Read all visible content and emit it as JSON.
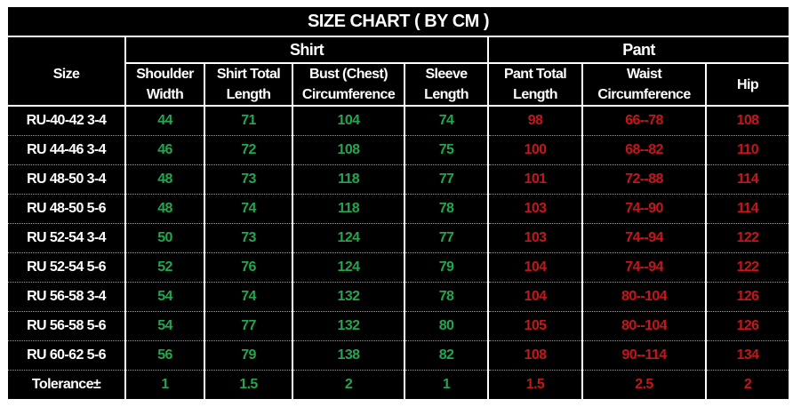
{
  "title": "SIZE CHART ( BY CM )",
  "groups": {
    "size": "Size",
    "shirt": "Shirt",
    "pant": "Pant"
  },
  "columns": [
    "Shoulder Width",
    "Shirt Total Length",
    "Bust (Chest) Circumference",
    "Sleeve Length",
    "Pant Total Length",
    "Waist Circumference",
    "Hip"
  ],
  "colors": {
    "shirt_values": "#22a64e",
    "pant_values": "#c4161c"
  },
  "rows": [
    [
      "RU-40-42 3-4",
      "44",
      "71",
      "104",
      "74",
      "98",
      "66--78",
      "108"
    ],
    [
      "RU 44-46 3-4",
      "46",
      "72",
      "108",
      "75",
      "100",
      "68--82",
      "110"
    ],
    [
      "RU 48-50 3-4",
      "48",
      "73",
      "118",
      "77",
      "101",
      "72--88",
      "114"
    ],
    [
      "RU 48-50 5-6",
      "48",
      "74",
      "118",
      "78",
      "103",
      "74--90",
      "114"
    ],
    [
      "RU 52-54 3-4",
      "50",
      "73",
      "124",
      "77",
      "103",
      "74--94",
      "122"
    ],
    [
      "RU 52-54 5-6",
      "52",
      "76",
      "124",
      "79",
      "104",
      "74--94",
      "122"
    ],
    [
      "RU 56-58 3-4",
      "54",
      "74",
      "132",
      "78",
      "104",
      "80--104",
      "126"
    ],
    [
      "RU 56-58 5-6",
      "54",
      "77",
      "132",
      "80",
      "105",
      "80--104",
      "126"
    ],
    [
      "RU 60-62 5-6",
      "56",
      "79",
      "138",
      "82",
      "108",
      "90--114",
      "134"
    ],
    [
      "Tolerance±",
      "1",
      "1.5",
      "2",
      "1",
      "1.5",
      "2.5",
      "2"
    ]
  ]
}
